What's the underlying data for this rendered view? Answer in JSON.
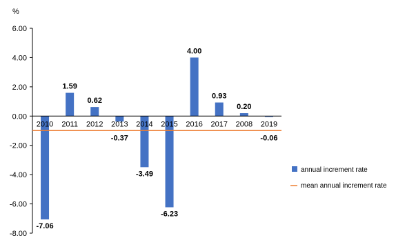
{
  "chart_data": {
    "type": "bar",
    "unit_label": "%",
    "categories": [
      "2010",
      "2011",
      "2012",
      "2013",
      "2014",
      "2015",
      "2016",
      "2017",
      "2008",
      "2019"
    ],
    "series": [
      {
        "name": "annual increment rate",
        "values": [
          -7.06,
          1.59,
          0.62,
          -0.37,
          -3.49,
          -6.23,
          4.0,
          0.93,
          0.2,
          -0.06
        ],
        "labels": [
          "-7.06",
          "1.59",
          "0.62",
          "-0.37",
          "-3.49",
          "-6.23",
          "4.00",
          "0.93",
          "0.20",
          "-0.06"
        ],
        "color": "#4472C4"
      }
    ],
    "reference_line": {
      "name": "mean annual increment rate",
      "value": -0.99,
      "color": "#ED7D31"
    },
    "ylim": [
      -8,
      6
    ],
    "yticks": [
      6,
      4,
      2,
      0,
      -2,
      -4,
      -6,
      -8
    ],
    "ytick_labels": [
      "6.00",
      "4.00",
      "2.00",
      "0.00",
      "-2.00",
      "-4.00",
      "-6.00",
      "-8.00"
    ],
    "grid": false,
    "legend": "right"
  }
}
